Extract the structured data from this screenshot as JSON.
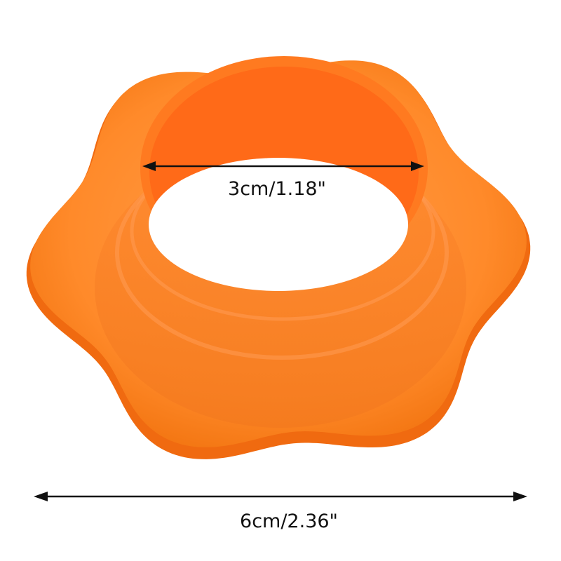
{
  "product": {
    "colors": {
      "body": "#ff8a2a",
      "rim": "#ff7a10",
      "shade": "#f06a10",
      "highlight": "#ffb070",
      "background": "#ffffff"
    }
  },
  "dimensions": {
    "inner": {
      "label": "3cm/1.18\""
    },
    "outer": {
      "label": "6cm/2.36\""
    }
  }
}
